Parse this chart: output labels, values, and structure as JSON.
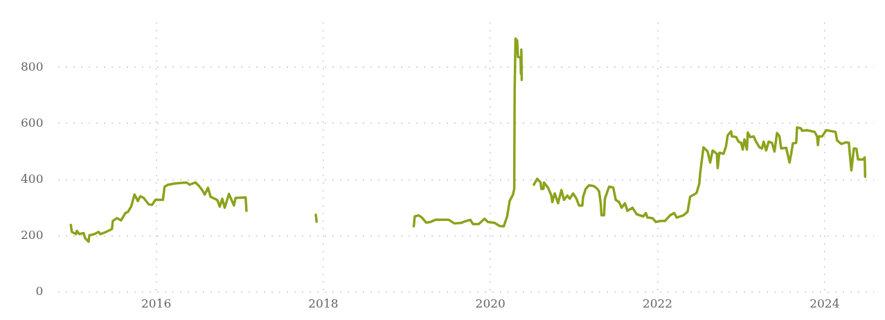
{
  "chart_data": {
    "type": "line",
    "xlim": [
      2014.83,
      2024.59
    ],
    "xticks": [
      2016,
      2018,
      2020,
      2022,
      2024
    ],
    "ylim": [
      0,
      960
    ],
    "yticks": [
      0,
      200,
      400,
      600,
      800
    ],
    "grid": true,
    "legend": false,
    "marker": "none",
    "line_style": "solid",
    "series": [
      {
        "color": "#8aa31c",
        "x": [
          2014.978,
          2014.99,
          2015.04,
          2015.05,
          2015.08,
          2015.13,
          2015.15,
          2015.19,
          2015.2,
          2015.26,
          2015.31,
          2015.33,
          2015.4,
          2015.47,
          2015.48,
          2015.53,
          2015.58,
          2015.63,
          2015.66,
          2015.7,
          2015.74,
          2015.78,
          2015.81,
          2015.85,
          2015.91,
          2015.95,
          2015.99,
          2016.03,
          2016.08,
          2016.1,
          2016.14,
          2016.22,
          2016.36,
          2016.4,
          2016.47,
          2016.51,
          2016.55,
          2016.58,
          2016.62,
          2016.65,
          2016.73,
          2016.76,
          2016.79,
          2016.82,
          2016.87,
          2016.93,
          2016.95,
          2017.07,
          2017.08,
          2017.5,
          2017.91,
          2017.92,
          2018.5,
          2019.083,
          2019.094,
          2019.14,
          2019.18,
          2019.23,
          2019.28,
          2019.34,
          2019.5,
          2019.57,
          2019.65,
          2019.69,
          2019.76,
          2019.79,
          2019.86,
          2019.93,
          2019.97,
          2020.05,
          2020.11,
          2020.16,
          2020.2,
          2020.23,
          2020.27,
          2020.285,
          2020.29,
          2020.3,
          2020.32,
          2020.33,
          2020.36,
          2020.365,
          2020.37,
          2020.375,
          2020.45,
          2020.52,
          2020.56,
          2020.6,
          2020.61,
          2020.635,
          2020.64,
          2020.69,
          2020.73,
          2020.74,
          2020.77,
          2020.81,
          2020.85,
          2020.88,
          2020.92,
          2020.95,
          2020.99,
          2021.03,
          2021.06,
          2021.1,
          2021.11,
          2021.14,
          2021.18,
          2021.24,
          2021.28,
          2021.3,
          2021.32,
          2021.33,
          2021.36,
          2021.37,
          2021.42,
          2021.47,
          2021.5,
          2021.54,
          2021.57,
          2021.61,
          2021.64,
          2021.7,
          2021.75,
          2021.83,
          2021.86,
          2021.88,
          2021.94,
          2021.98,
          2022.03,
          2022.09,
          2022.15,
          2022.2,
          2022.23,
          2022.31,
          2022.36,
          2022.39,
          2022.46,
          2022.47,
          2022.5,
          2022.51,
          2022.55,
          2022.6,
          2022.63,
          2022.66,
          2022.71,
          2022.72,
          2022.74,
          2022.79,
          2022.82,
          2022.84,
          2022.88,
          2022.89,
          2022.94,
          2022.97,
          2023.0,
          2023.02,
          2023.04,
          2023.07,
          2023.08,
          2023.11,
          2023.15,
          2023.18,
          2023.22,
          2023.25,
          2023.27,
          2023.3,
          2023.33,
          2023.37,
          2023.4,
          2023.43,
          2023.46,
          2023.48,
          2023.54,
          2023.58,
          2023.6,
          2023.62,
          2023.66,
          2023.67,
          2023.72,
          2023.73,
          2023.79,
          2023.88,
          2023.91,
          2023.92,
          2023.93,
          2023.97,
          2024.02,
          2024.13,
          2024.15,
          2024.2,
          2024.26,
          2024.29,
          2024.3,
          2024.32,
          2024.35,
          2024.38,
          2024.4,
          2024.46,
          2024.48,
          2024.485
        ],
        "values": [
          239,
          214,
          206,
          218,
          206,
          210,
          191,
          179,
          202,
          206,
          214,
          206,
          214,
          224,
          253,
          263,
          255,
          281,
          285,
          304,
          347,
          324,
          341,
          335,
          312,
          310,
          328,
          328,
          328,
          375,
          382,
          386,
          390,
          382,
          390,
          378,
          363,
          347,
          371,
          339,
          328,
          304,
          332,
          300,
          349,
          308,
          335,
          337,
          289,
          null,
          275,
          250,
          null,
          234,
          269,
          273,
          265,
          247,
          249,
          257,
          257,
          244,
          246,
          251,
          257,
          242,
          242,
          261,
          249,
          246,
          235,
          234,
          269,
          324,
          347,
          367,
          715,
          902,
          895,
          836,
          836,
          777,
          863,
          755,
          null,
          382,
          403,
          390,
          367,
          367,
          390,
          371,
          343,
          320,
          351,
          316,
          363,
          328,
          343,
          332,
          351,
          332,
          308,
          308,
          339,
          367,
          380,
          377,
          367,
          359,
          316,
          273,
          273,
          332,
          375,
          372,
          328,
          320,
          300,
          316,
          289,
          300,
          277,
          269,
          281,
          265,
          263,
          249,
          253,
          253,
          273,
          281,
          265,
          273,
          286,
          339,
          351,
          355,
          386,
          422,
          515,
          500,
          461,
          504,
          492,
          441,
          496,
          492,
          519,
          558,
          572,
          554,
          552,
          535,
          531,
          507,
          543,
          507,
          568,
          551,
          554,
          535,
          515,
          511,
          535,
          504,
          535,
          531,
          500,
          566,
          554,
          511,
          513,
          461,
          492,
          529,
          531,
          586,
          582,
          574,
          576,
          570,
          554,
          523,
          554,
          554,
          576,
          570,
          539,
          527,
          533,
          531,
          496,
          433,
          511,
          510,
          472,
          472,
          479,
          410
        ]
      }
    ]
  }
}
